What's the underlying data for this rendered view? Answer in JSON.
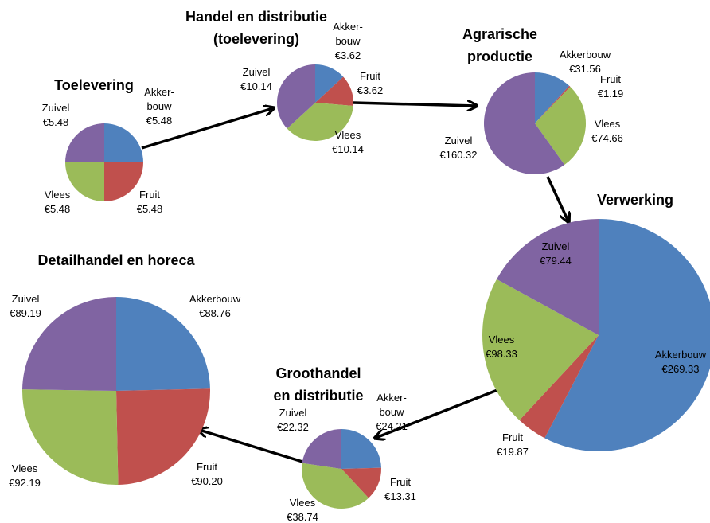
{
  "chart_data": [
    {
      "type": "pie",
      "title": "Toelevering",
      "categories": [
        "Akker-\nbouw",
        "Fruit",
        "Vlees",
        "Zuivel"
      ],
      "values": [
        5.48,
        5.48,
        5.48,
        5.48
      ],
      "value_labels": [
        "€5.48",
        "€5.48",
        "€5.48",
        "€5.48"
      ],
      "colors": [
        "#4f81bd",
        "#c0504d",
        "#9bbb59",
        "#8064a2"
      ]
    },
    {
      "type": "pie",
      "title": "Handel en distributie\n(toelevering)",
      "categories": [
        "Akker-\nbouw",
        "Fruit",
        "Vlees",
        "Zuivel"
      ],
      "values": [
        3.62,
        3.62,
        10.14,
        10.14
      ],
      "value_labels": [
        "€3.62",
        "€3.62",
        "€10.14",
        "€10.14"
      ],
      "colors": [
        "#4f81bd",
        "#c0504d",
        "#9bbb59",
        "#8064a2"
      ]
    },
    {
      "type": "pie",
      "title": "Agrarische\nproductie",
      "categories": [
        "Akkerbouw",
        "Fruit",
        "Vlees",
        "Zuivel"
      ],
      "values": [
        31.56,
        1.19,
        74.66,
        160.32
      ],
      "value_labels": [
        "€31.56",
        "€1.19",
        "€74.66",
        "€160.32"
      ],
      "colors": [
        "#4f81bd",
        "#c0504d",
        "#9bbb59",
        "#8064a2"
      ]
    },
    {
      "type": "pie",
      "title": "Verwerking",
      "categories": [
        "Akkerbouw",
        "Fruit",
        "Vlees",
        "Zuivel"
      ],
      "values": [
        269.33,
        19.87,
        98.33,
        79.44
      ],
      "value_labels": [
        "€269.33",
        "€19.87",
        "€98.33",
        "€79.44"
      ],
      "colors": [
        "#4f81bd",
        "#c0504d",
        "#9bbb59",
        "#8064a2"
      ]
    },
    {
      "type": "pie",
      "title": "Groothandel\nen distributie",
      "categories": [
        "Akker-\nbouw",
        "Fruit",
        "Vlees",
        "Zuivel"
      ],
      "values": [
        24.21,
        13.31,
        38.74,
        22.32
      ],
      "value_labels": [
        "€24.21",
        "€13.31",
        "€38.74",
        "€22.32"
      ],
      "colors": [
        "#4f81bd",
        "#c0504d",
        "#9bbb59",
        "#8064a2"
      ]
    },
    {
      "type": "pie",
      "title": "Detailhandel en horeca",
      "categories": [
        "Akkerbouw",
        "Fruit",
        "Vlees",
        "Zuivel"
      ],
      "values": [
        88.76,
        90.2,
        92.19,
        89.19
      ],
      "value_labels": [
        "€88.76",
        "€90.20",
        "€92.19",
        "€89.19"
      ],
      "colors": [
        "#4f81bd",
        "#c0504d",
        "#9bbb59",
        "#8064a2"
      ]
    }
  ]
}
